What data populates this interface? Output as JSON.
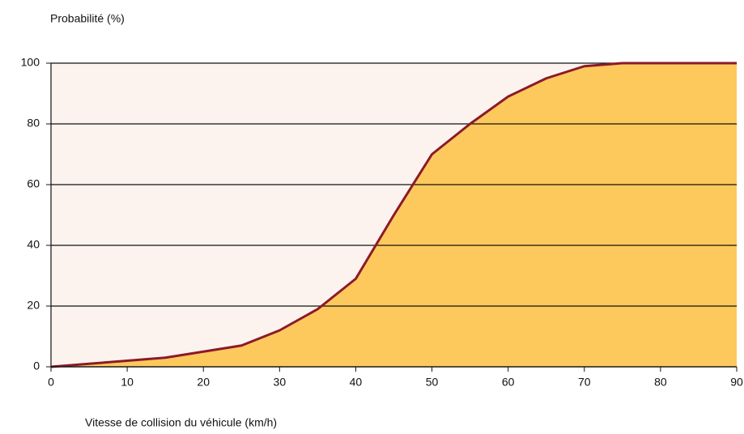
{
  "chart_data": {
    "type": "area",
    "title": "Probabilité (%)",
    "x_label": "Vitesse de collision du véhicule (km/h)",
    "x": [
      0,
      5,
      10,
      15,
      20,
      25,
      30,
      35,
      40,
      45,
      50,
      55,
      60,
      65,
      70,
      75,
      80,
      85,
      90
    ],
    "series": [
      {
        "color": "#fdc95c",
        "line_color": "#8b1a2a",
        "values": [
          0,
          1,
          2,
          3,
          5,
          7,
          12,
          19,
          29,
          50,
          70,
          80,
          89,
          95,
          99,
          100,
          100,
          100,
          100
        ]
      }
    ],
    "xlim": [
      0,
      90
    ],
    "xticks": [
      0,
      10,
      20,
      30,
      40,
      50,
      60,
      70,
      80,
      90
    ],
    "ylim": [
      0,
      100
    ],
    "yticks": [
      0,
      20,
      40,
      60,
      80,
      100
    ],
    "grid": true,
    "plot_background": "#fdf3ee"
  }
}
